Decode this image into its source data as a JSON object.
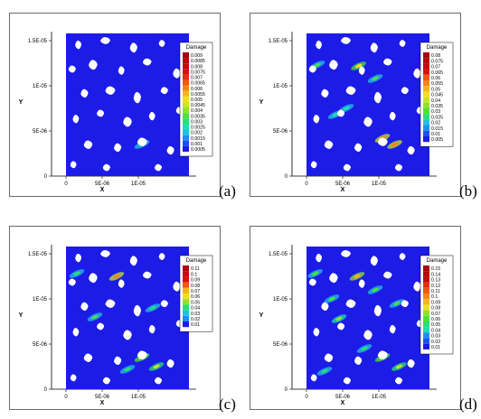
{
  "figure": {
    "panels": [
      {
        "key": "a",
        "label": "(a)"
      },
      {
        "key": "b",
        "label": "(b)"
      },
      {
        "key": "c",
        "label": "(c)"
      },
      {
        "key": "d",
        "label": "(d)"
      }
    ]
  },
  "chart_data": [
    {
      "type": "heatmap",
      "panel": "(a)",
      "title": "",
      "xlabel": "X",
      "ylabel": "Y",
      "x_ticks": [
        "0",
        "5E-06",
        "1E-05"
      ],
      "y_ticks": [
        "0",
        "5E-06",
        "1E-05",
        "1.5E-05"
      ],
      "xlim": [
        -2e-06,
        1.8e-05
      ],
      "ylim": [
        0,
        1.6e-05
      ],
      "domain_x": [
        0,
        1.7e-05
      ],
      "domain_y": [
        0,
        1.58e-05
      ],
      "legend": {
        "title": "Damage",
        "levels": [
          "0.009",
          "0.0085",
          "0.008",
          "0.0075",
          "0.007",
          "0.0065",
          "0.006",
          "0.0055",
          "0.005",
          "0.0045",
          "0.004",
          "0.0035",
          "0.003",
          "0.0025",
          "0.002",
          "0.0015",
          "0.001",
          "0.0005"
        ]
      },
      "background_color": "#1c1ce6",
      "hotspots": [
        {
          "x": 1.05e-05,
          "y": 3.5e-06,
          "value": 0.0025
        }
      ]
    },
    {
      "type": "heatmap",
      "panel": "(b)",
      "title": "",
      "xlabel": "X",
      "ylabel": "Y",
      "x_ticks": [
        "0",
        "5E-06",
        "1E-05"
      ],
      "y_ticks": [
        "0",
        "5E-06",
        "1E-05",
        "1.5E-05"
      ],
      "xlim": [
        -2e-06,
        1.8e-05
      ],
      "ylim": [
        0,
        1.6e-05
      ],
      "domain_x": [
        0,
        1.7e-05
      ],
      "domain_y": [
        0,
        1.58e-05
      ],
      "legend": {
        "title": "Damage",
        "levels": [
          "0.08",
          "0.075",
          "0.07",
          "0.065",
          "0.06",
          "0.055",
          "0.05",
          "0.045",
          "0.04",
          "0.035",
          "0.03",
          "0.025",
          "0.02",
          "0.015",
          "0.01",
          "0.005"
        ]
      },
      "background_color": "#1c1ce6",
      "hotspots": [
        {
          "x": 1.5e-06,
          "y": 1.23e-05,
          "value": 0.03
        },
        {
          "x": 7.2e-06,
          "y": 1.22e-05,
          "value": 0.04
        },
        {
          "x": 9.5e-06,
          "y": 1.08e-05,
          "value": 0.03
        },
        {
          "x": 4e-06,
          "y": 6.8e-06,
          "value": 0.02
        },
        {
          "x": 5.5e-06,
          "y": 7.5e-06,
          "value": 0.02
        },
        {
          "x": 1.05e-05,
          "y": 4.2e-06,
          "value": 0.05
        },
        {
          "x": 1.22e-05,
          "y": 3.5e-06,
          "value": 0.05
        }
      ]
    },
    {
      "type": "heatmap",
      "panel": "(c)",
      "title": "",
      "xlabel": "X",
      "ylabel": "Y",
      "x_ticks": [
        "0",
        "5E-06",
        "1E-05"
      ],
      "y_ticks": [
        "0",
        "5E-06",
        "1E-05",
        "1.5E-05"
      ],
      "xlim": [
        -2e-06,
        1.8e-05
      ],
      "ylim": [
        0,
        1.6e-05
      ],
      "domain_x": [
        0,
        1.7e-05
      ],
      "domain_y": [
        0,
        1.58e-05
      ],
      "legend": {
        "title": "Damage",
        "levels": [
          "0.11",
          "0.1",
          "0.09",
          "0.08",
          "0.07",
          "0.06",
          "0.05",
          "0.04",
          "0.03",
          "0.02",
          "0.01"
        ]
      },
      "background_color": "#1c1ce6",
      "hotspots": [
        {
          "x": 7e-06,
          "y": 1.25e-05,
          "value": 0.07
        },
        {
          "x": 1.5e-06,
          "y": 1.28e-05,
          "value": 0.03
        },
        {
          "x": 4e-06,
          "y": 8e-06,
          "value": 0.04
        },
        {
          "x": 1.2e-05,
          "y": 9e-06,
          "value": 0.03
        },
        {
          "x": 1.05e-05,
          "y": 3.5e-06,
          "value": 0.06
        },
        {
          "x": 1.25e-05,
          "y": 2.5e-06,
          "value": 0.05
        },
        {
          "x": 8.5e-06,
          "y": 2.2e-06,
          "value": 0.03
        }
      ]
    },
    {
      "type": "heatmap",
      "panel": "(d)",
      "title": "",
      "xlabel": "X",
      "ylabel": "Y",
      "x_ticks": [
        "0",
        "5E-06",
        "1E-05"
      ],
      "y_ticks": [
        "0",
        "5E-06",
        "1E-05",
        "1.5E-05"
      ],
      "xlim": [
        -2e-06,
        1.8e-05
      ],
      "ylim": [
        0,
        1.6e-05
      ],
      "domain_x": [
        0,
        1.7e-05
      ],
      "domain_y": [
        0,
        1.58e-05
      ],
      "legend": {
        "title": "Damage",
        "levels": [
          "0.15",
          "0.14",
          "0.13",
          "0.12",
          "0.11",
          "0.1",
          "0.09",
          "0.08",
          "0.07",
          "0.06",
          "0.05",
          "0.04",
          "0.03",
          "0.02",
          "0.01"
        ]
      },
      "background_color": "#1c1ce6",
      "hotspots": [
        {
          "x": 7e-06,
          "y": 1.25e-05,
          "value": 0.09
        },
        {
          "x": 1.2e-06,
          "y": 1.28e-05,
          "value": 0.05
        },
        {
          "x": 3.5e-06,
          "y": 1e-05,
          "value": 0.05
        },
        {
          "x": 4.5e-06,
          "y": 7.8e-06,
          "value": 0.06
        },
        {
          "x": 9.5e-06,
          "y": 1.1e-05,
          "value": 0.05
        },
        {
          "x": 1.25e-05,
          "y": 9.5e-06,
          "value": 0.05
        },
        {
          "x": 1.05e-05,
          "y": 3.5e-06,
          "value": 0.08
        },
        {
          "x": 1.28e-05,
          "y": 2.5e-06,
          "value": 0.07
        },
        {
          "x": 8e-06,
          "y": 4.5e-06,
          "value": 0.04
        },
        {
          "x": 2.5e-06,
          "y": 2e-06,
          "value": 0.04
        }
      ]
    }
  ]
}
